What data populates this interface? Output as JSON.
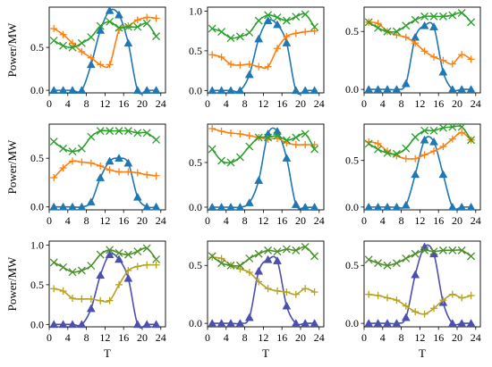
{
  "chart_data": {
    "type": "line",
    "x": [
      1,
      3,
      5,
      7,
      9,
      11,
      13,
      15,
      17,
      19,
      21,
      23
    ],
    "xticks": [
      0,
      4,
      8,
      12,
      16,
      20,
      24
    ],
    "xlim": [
      0,
      25
    ],
    "xlabel": "T",
    "ylabel": "Power/MW",
    "grid": false,
    "colors": {
      "blue": "#1f77b4",
      "orange": "#ff7f0e",
      "green": "#2ca02c",
      "dark_blue": "#4a4fb0",
      "olive": "#b5a21f",
      "dark_green": "#4a8f2a"
    },
    "panels": [
      {
        "yticks": [
          "0.0",
          "0.5"
        ],
        "ylim": [
          -0.03,
          0.97
        ],
        "ytick_values": [
          0.0,
          0.5
        ],
        "show_ylabel": true,
        "show_xlabel": false,
        "series": [
          {
            "marker": "triangle",
            "color_key": "blue",
            "values": [
              0.0,
              0.0,
              0.0,
              0.0,
              0.3,
              0.7,
              0.93,
              0.88,
              0.55,
              0.0,
              0.0,
              0.0
            ]
          },
          {
            "marker": "plus",
            "color_key": "orange",
            "values": [
              0.72,
              0.65,
              0.55,
              0.45,
              0.38,
              0.3,
              0.3,
              0.7,
              0.75,
              0.82,
              0.85,
              0.84
            ]
          },
          {
            "marker": "x",
            "color_key": "green",
            "values": [
              0.58,
              0.52,
              0.5,
              0.55,
              0.62,
              0.75,
              0.8,
              0.73,
              0.74,
              0.74,
              0.78,
              0.63
            ]
          }
        ]
      },
      {
        "yticks": [
          "0.0",
          "0.5",
          "1.0"
        ],
        "ylim": [
          -0.03,
          1.05
        ],
        "ytick_values": [
          0.0,
          0.5,
          1.0
        ],
        "show_ylabel": false,
        "show_xlabel": false,
        "series": [
          {
            "marker": "triangle",
            "color_key": "blue",
            "values": [
              0.0,
              0.0,
              0.0,
              0.0,
              0.2,
              0.65,
              0.88,
              0.83,
              0.6,
              0.0,
              0.0,
              0.0
            ]
          },
          {
            "marker": "plus",
            "color_key": "orange",
            "values": [
              0.45,
              0.42,
              0.33,
              0.32,
              0.33,
              0.3,
              0.3,
              0.53,
              0.68,
              0.72,
              0.74,
              0.75
            ]
          },
          {
            "marker": "x",
            "color_key": "green",
            "values": [
              0.78,
              0.74,
              0.66,
              0.68,
              0.73,
              0.88,
              0.95,
              0.92,
              0.88,
              0.93,
              0.96,
              0.8
            ]
          }
        ]
      },
      {
        "yticks": [
          "0.0",
          "0.5"
        ],
        "ylim": [
          -0.03,
          0.71
        ],
        "ytick_values": [
          0.0,
          0.5
        ],
        "show_ylabel": false,
        "show_xlabel": false,
        "series": [
          {
            "marker": "triangle",
            "color_key": "blue",
            "values": [
              0.0,
              0.0,
              0.0,
              0.0,
              0.05,
              0.45,
              0.55,
              0.54,
              0.15,
              0.0,
              0.0,
              0.0
            ]
          },
          {
            "marker": "plus",
            "color_key": "orange",
            "values": [
              0.58,
              0.57,
              0.5,
              0.47,
              0.45,
              0.4,
              0.33,
              0.28,
              0.25,
              0.22,
              0.3,
              0.26
            ]
          },
          {
            "marker": "x",
            "color_key": "green",
            "values": [
              0.58,
              0.53,
              0.5,
              0.5,
              0.55,
              0.6,
              0.63,
              0.63,
              0.63,
              0.64,
              0.66,
              0.58
            ]
          }
        ]
      },
      {
        "yticks": [
          "0.0",
          "0.5"
        ],
        "ylim": [
          -0.03,
          0.85
        ],
        "ytick_values": [
          0.0,
          0.5
        ],
        "show_ylabel": true,
        "show_xlabel": false,
        "series": [
          {
            "marker": "triangle",
            "color_key": "blue",
            "values": [
              0.0,
              0.0,
              0.0,
              0.0,
              0.05,
              0.3,
              0.47,
              0.5,
              0.45,
              0.1,
              0.0,
              0.0
            ]
          },
          {
            "marker": "plus",
            "color_key": "orange",
            "values": [
              0.3,
              0.4,
              0.47,
              0.46,
              0.45,
              0.42,
              0.38,
              0.36,
              0.36,
              0.35,
              0.33,
              0.32
            ]
          },
          {
            "marker": "x",
            "color_key": "green",
            "values": [
              0.67,
              0.6,
              0.57,
              0.6,
              0.72,
              0.78,
              0.78,
              0.78,
              0.78,
              0.76,
              0.76,
              0.69
            ]
          }
        ]
      },
      {
        "yticks": [
          "0.0",
          "0.5"
        ],
        "ylim": [
          -0.03,
          0.93
        ],
        "ytick_values": [
          0.0,
          0.5
        ],
        "show_ylabel": false,
        "show_xlabel": false,
        "series": [
          {
            "marker": "triangle",
            "color_key": "blue",
            "values": [
              0.0,
              0.0,
              0.0,
              0.0,
              0.05,
              0.3,
              0.82,
              0.85,
              0.55,
              0.03,
              0.0,
              0.0
            ]
          },
          {
            "marker": "plus",
            "color_key": "orange",
            "values": [
              0.88,
              0.85,
              0.83,
              0.82,
              0.8,
              0.78,
              0.76,
              0.77,
              0.72,
              0.7,
              0.7,
              0.7
            ]
          },
          {
            "marker": "x",
            "color_key": "green",
            "values": [
              0.65,
              0.52,
              0.5,
              0.56,
              0.68,
              0.78,
              0.78,
              0.8,
              0.75,
              0.78,
              0.82,
              0.65
            ]
          }
        ]
      },
      {
        "yticks": [
          "0.0",
          "0.5"
        ],
        "ylim": [
          -0.03,
          0.89
        ],
        "ytick_values": [
          0.0,
          0.5
        ],
        "show_ylabel": false,
        "show_xlabel": false,
        "series": [
          {
            "marker": "triangle",
            "color_key": "blue",
            "values": [
              0.0,
              0.0,
              0.0,
              0.0,
              0.02,
              0.35,
              0.72,
              0.7,
              0.35,
              0.0,
              0.0,
              0.0
            ]
          },
          {
            "marker": "plus",
            "color_key": "orange",
            "values": [
              0.7,
              0.68,
              0.6,
              0.55,
              0.52,
              0.52,
              0.56,
              0.6,
              0.65,
              0.73,
              0.8,
              0.72
            ]
          },
          {
            "marker": "x",
            "color_key": "green",
            "values": [
              0.68,
              0.62,
              0.58,
              0.57,
              0.63,
              0.75,
              0.82,
              0.82,
              0.85,
              0.86,
              0.86,
              0.72
            ]
          }
        ]
      },
      {
        "yticks": [
          "0.0",
          "0.5",
          "1.0"
        ],
        "ylim": [
          -0.03,
          1.05
        ],
        "ytick_values": [
          0.0,
          0.5,
          1.0
        ],
        "show_ylabel": true,
        "show_xlabel": true,
        "series": [
          {
            "marker": "triangle",
            "color_key": "dark_blue",
            "values": [
              0.0,
              0.0,
              0.0,
              0.0,
              0.2,
              0.62,
              0.88,
              0.82,
              0.58,
              0.0,
              0.0,
              0.0
            ]
          },
          {
            "marker": "plus",
            "color_key": "olive",
            "values": [
              0.45,
              0.42,
              0.33,
              0.32,
              0.32,
              0.3,
              0.3,
              0.5,
              0.68,
              0.73,
              0.75,
              0.75
            ]
          },
          {
            "marker": "x",
            "color_key": "dark_green",
            "values": [
              0.78,
              0.72,
              0.66,
              0.68,
              0.74,
              0.88,
              0.94,
              0.9,
              0.88,
              0.92,
              0.96,
              0.82
            ]
          }
        ]
      },
      {
        "yticks": [
          "0.0",
          "0.5"
        ],
        "ylim": [
          -0.03,
          0.71
        ],
        "ytick_values": [
          0.0,
          0.5
        ],
        "show_ylabel": false,
        "show_xlabel": true,
        "series": [
          {
            "marker": "triangle",
            "color_key": "dark_blue",
            "values": [
              0.0,
              0.0,
              0.0,
              0.0,
              0.05,
              0.45,
              0.55,
              0.54,
              0.15,
              0.0,
              0.0,
              0.0
            ]
          },
          {
            "marker": "plus",
            "color_key": "olive",
            "values": [
              0.57,
              0.56,
              0.5,
              0.47,
              0.44,
              0.36,
              0.3,
              0.28,
              0.27,
              0.25,
              0.3,
              0.27
            ]
          },
          {
            "marker": "x",
            "color_key": "dark_green",
            "values": [
              0.58,
              0.52,
              0.5,
              0.5,
              0.56,
              0.6,
              0.63,
              0.62,
              0.64,
              0.63,
              0.66,
              0.58
            ]
          }
        ]
      },
      {
        "yticks": [
          "0.0",
          "0.5"
        ],
        "ylim": [
          -0.03,
          0.71
        ],
        "ytick_values": [
          0.0,
          0.5
        ],
        "show_ylabel": false,
        "show_xlabel": true,
        "series": [
          {
            "marker": "triangle",
            "color_key": "dark_blue",
            "values": [
              0.0,
              0.0,
              0.0,
              0.0,
              0.05,
              0.42,
              0.66,
              0.6,
              0.18,
              0.0,
              0.0,
              0.0
            ]
          },
          {
            "marker": "plus",
            "color_key": "olive",
            "values": [
              0.25,
              0.24,
              0.22,
              0.2,
              0.15,
              0.1,
              0.08,
              0.13,
              0.2,
              0.25,
              0.22,
              0.24
            ]
          },
          {
            "marker": "x",
            "color_key": "dark_green",
            "values": [
              0.55,
              0.52,
              0.5,
              0.52,
              0.56,
              0.6,
              0.63,
              0.62,
              0.63,
              0.63,
              0.63,
              0.58
            ]
          }
        ]
      }
    ]
  }
}
